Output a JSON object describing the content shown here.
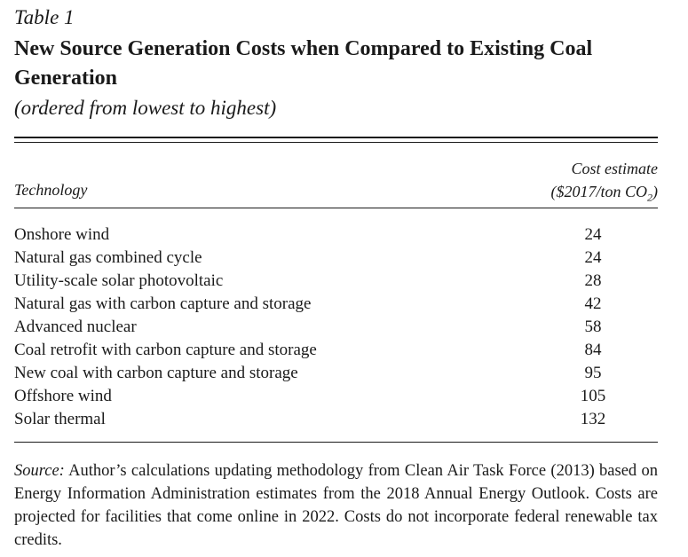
{
  "table_label": "Table 1",
  "title": "New Source Generation Costs when Compared to Existing Coal Generation",
  "subtitle": "(ordered from lowest to highest)",
  "columns": {
    "technology": "Technology",
    "cost_line1": "Cost estimate",
    "cost_line2_prefix": "($2017/ton CO",
    "cost_line2_sub": "2",
    "cost_line2_suffix": ")"
  },
  "rows": [
    {
      "technology": "Onshore wind",
      "cost": "24"
    },
    {
      "technology": "Natural gas combined cycle",
      "cost": "24"
    },
    {
      "technology": "Utility-scale solar photovoltaic",
      "cost": "28"
    },
    {
      "technology": "Natural gas with carbon capture and storage",
      "cost": "42"
    },
    {
      "technology": "Advanced nuclear",
      "cost": "58"
    },
    {
      "technology": "Coal retrofit with carbon capture and storage",
      "cost": "84"
    },
    {
      "technology": "New coal with carbon capture and storage",
      "cost": "95"
    },
    {
      "technology": "Offshore wind",
      "cost": "105"
    },
    {
      "technology": "Solar thermal",
      "cost": "132"
    }
  ],
  "source_note": {
    "label": "Source:",
    "text": " Author’s calculations updating methodology from Clean Air Task Force (2013) based on Energy Information Administration estimates from the 2018 Annual Energy Outlook. Costs are projected for facilities that come online in 2022. Costs do not incorporate federal renewable tax credits."
  }
}
